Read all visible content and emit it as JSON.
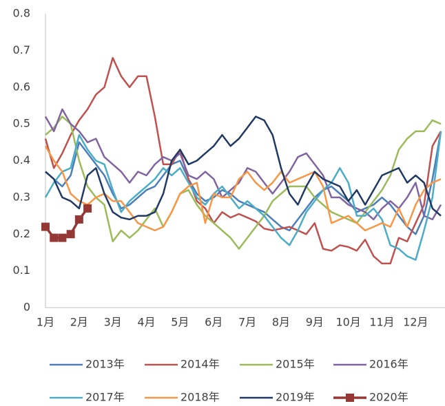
{
  "chart_data": {
    "type": "line",
    "categories": [
      "1月",
      null,
      null,
      null,
      "2月",
      null,
      null,
      null,
      "3月",
      null,
      null,
      null,
      "4月",
      null,
      null,
      null,
      "5月",
      null,
      null,
      null,
      "6月",
      null,
      null,
      null,
      "7月",
      null,
      null,
      null,
      "8月",
      null,
      null,
      null,
      "9月",
      null,
      null,
      null,
      "10月",
      null,
      null,
      null,
      "11月",
      null,
      null,
      null,
      "12月",
      null,
      null,
      null
    ],
    "ylim": [
      0,
      0.8
    ],
    "yticks": [
      0,
      0.1,
      0.2,
      0.3,
      0.4,
      0.5,
      0.6,
      0.7,
      0.8
    ],
    "grid": false,
    "legend": "bottom",
    "series": [
      {
        "name": "2013年",
        "color": "#4a7ebb",
        "values": [
          0.37,
          0.35,
          0.33,
          0.36,
          0.45,
          0.42,
          0.39,
          0.36,
          0.31,
          0.27,
          0.28,
          0.3,
          0.32,
          0.33,
          0.36,
          0.39,
          0.4,
          0.35,
          0.31,
          0.29,
          0.3,
          0.32,
          0.31,
          0.29,
          0.28,
          0.27,
          0.26,
          0.24,
          0.22,
          0.21,
          0.24,
          0.27,
          0.3,
          0.32,
          0.33,
          0.31,
          0.29,
          0.26,
          0.27,
          0.28,
          0.3,
          0.28,
          0.25,
          0.22,
          0.2,
          0.25,
          0.35,
          0.48
        ]
      },
      {
        "name": "2014年",
        "color": "#c0504d",
        "values": [
          0.46,
          0.38,
          0.42,
          0.47,
          0.51,
          0.54,
          0.58,
          0.6,
          0.68,
          0.63,
          0.6,
          0.63,
          0.63,
          0.52,
          0.39,
          0.39,
          0.43,
          0.35,
          0.29,
          0.27,
          0.23,
          0.26,
          0.245,
          0.255,
          0.245,
          0.235,
          0.215,
          0.21,
          0.215,
          0.22,
          0.21,
          0.2,
          0.23,
          0.16,
          0.155,
          0.17,
          0.165,
          0.155,
          0.185,
          0.14,
          0.12,
          0.12,
          0.19,
          0.18,
          0.23,
          0.28,
          0.44,
          0.48
        ]
      },
      {
        "name": "2015年",
        "color": "#9bbb59",
        "values": [
          0.47,
          0.49,
          0.52,
          0.5,
          0.4,
          0.33,
          0.3,
          0.28,
          0.18,
          0.21,
          0.19,
          0.21,
          0.24,
          0.27,
          0.22,
          0.26,
          0.31,
          0.32,
          0.28,
          0.25,
          0.23,
          0.21,
          0.19,
          0.16,
          0.19,
          0.22,
          0.25,
          0.29,
          0.31,
          0.33,
          0.33,
          0.33,
          0.3,
          0.28,
          0.26,
          0.25,
          0.24,
          0.23,
          0.26,
          0.29,
          0.32,
          0.36,
          0.43,
          0.46,
          0.48,
          0.48,
          0.51,
          0.5
        ]
      },
      {
        "name": "2016年",
        "color": "#8064a2",
        "values": [
          0.52,
          0.48,
          0.54,
          0.5,
          0.48,
          0.45,
          0.46,
          0.41,
          0.39,
          0.37,
          0.34,
          0.37,
          0.36,
          0.39,
          0.41,
          0.4,
          0.42,
          0.36,
          0.35,
          0.37,
          0.35,
          0.3,
          0.32,
          0.34,
          0.38,
          0.37,
          0.34,
          0.31,
          0.34,
          0.37,
          0.41,
          0.42,
          0.39,
          0.36,
          0.3,
          0.3,
          0.28,
          0.27,
          0.26,
          0.24,
          0.27,
          0.29,
          0.27,
          0.3,
          0.34,
          0.25,
          0.24,
          0.28
        ]
      },
      {
        "name": "2017年",
        "color": "#4bacc6",
        "values": [
          0.3,
          0.34,
          0.37,
          0.38,
          0.47,
          0.43,
          0.4,
          0.39,
          0.32,
          0.26,
          0.29,
          0.31,
          0.33,
          0.35,
          0.38,
          0.36,
          0.38,
          0.34,
          0.3,
          0.28,
          0.31,
          0.33,
          0.3,
          0.27,
          0.29,
          0.27,
          0.25,
          0.22,
          0.19,
          0.17,
          0.21,
          0.26,
          0.29,
          0.32,
          0.34,
          0.38,
          0.34,
          0.25,
          0.25,
          0.27,
          0.24,
          0.17,
          0.16,
          0.14,
          0.13,
          0.21,
          0.3,
          0.48
        ]
      },
      {
        "name": "2018年",
        "color": "#f79646",
        "values": [
          0.44,
          0.4,
          0.37,
          0.31,
          0.29,
          0.28,
          0.3,
          0.31,
          0.29,
          0.29,
          0.26,
          0.23,
          0.22,
          0.21,
          0.22,
          0.26,
          0.31,
          0.33,
          0.34,
          0.23,
          0.31,
          0.3,
          0.3,
          0.35,
          0.37,
          0.34,
          0.32,
          0.34,
          0.37,
          0.34,
          0.35,
          0.36,
          0.37,
          0.33,
          0.23,
          0.24,
          0.25,
          0.23,
          0.21,
          0.22,
          0.23,
          0.22,
          0.27,
          0.22,
          0.28,
          0.32,
          0.34,
          0.35
        ]
      },
      {
        "name": "2019年",
        "color": "#1f3864",
        "values": [
          0.37,
          0.35,
          0.3,
          0.29,
          0.27,
          0.36,
          0.38,
          0.31,
          0.26,
          0.245,
          0.24,
          0.25,
          0.25,
          0.26,
          0.31,
          0.4,
          0.43,
          0.39,
          0.4,
          0.42,
          0.44,
          0.47,
          0.44,
          0.46,
          0.49,
          0.52,
          0.51,
          0.47,
          0.38,
          0.31,
          0.28,
          0.33,
          0.37,
          0.35,
          0.34,
          0.33,
          0.29,
          0.32,
          0.28,
          0.32,
          0.36,
          0.37,
          0.38,
          0.34,
          0.36,
          0.34,
          0.27,
          0.25
        ]
      },
      {
        "name": "2020年",
        "color": "#953735",
        "marker": "square",
        "values": [
          0.22,
          0.19,
          0.19,
          0.2,
          0.24,
          0.27,
          null,
          null,
          null,
          null,
          null,
          null,
          null,
          null,
          null,
          null,
          null,
          null,
          null,
          null,
          null,
          null,
          null,
          null,
          null,
          null,
          null,
          null,
          null,
          null,
          null,
          null,
          null,
          null,
          null,
          null,
          null,
          null,
          null,
          null,
          null,
          null,
          null,
          null,
          null,
          null,
          null,
          null
        ]
      }
    ]
  }
}
